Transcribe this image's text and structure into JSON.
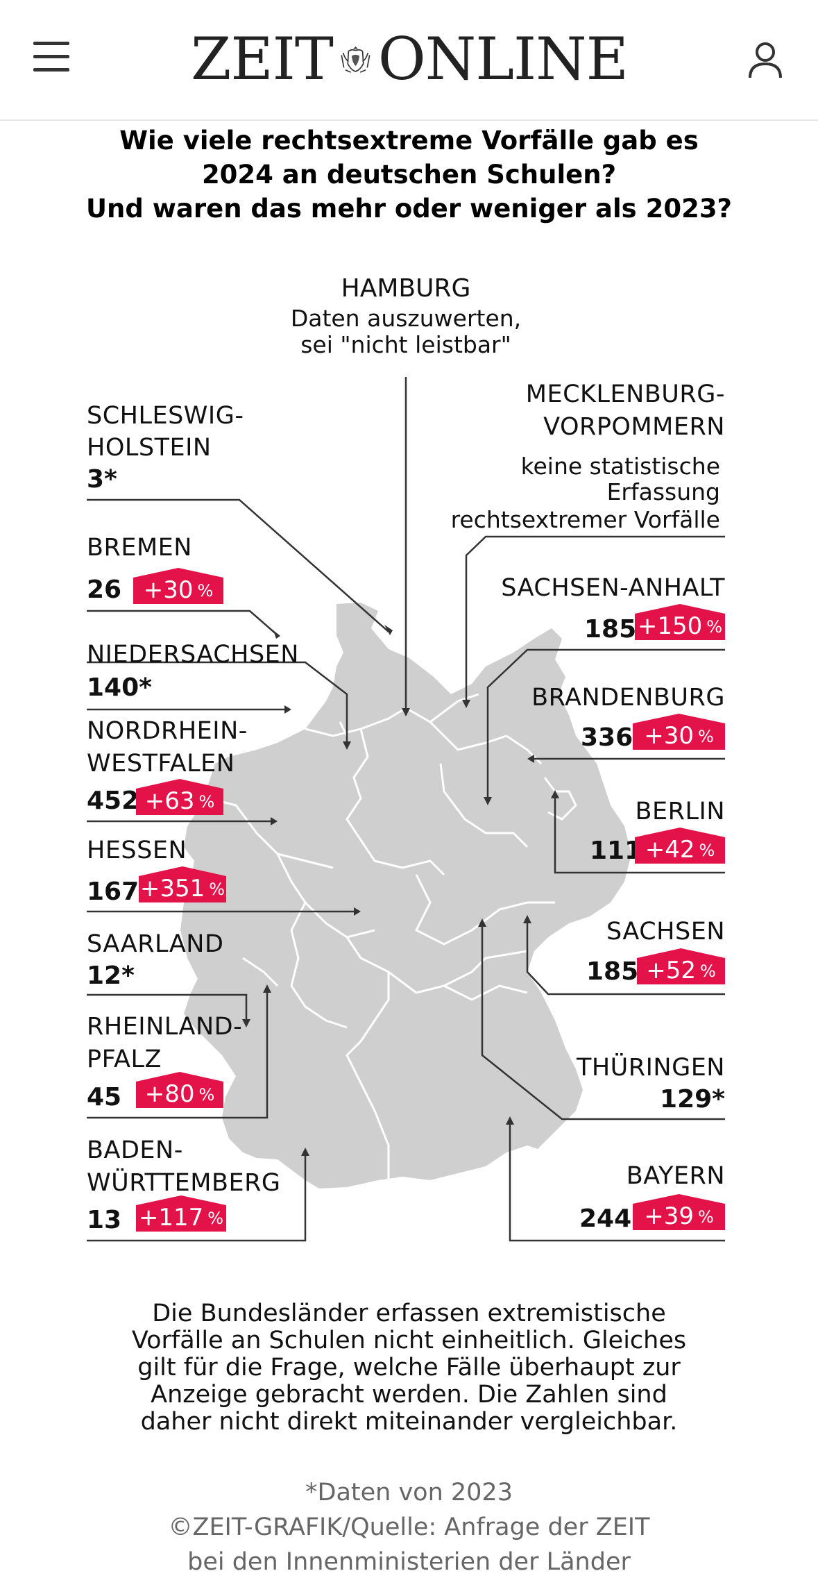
{
  "header": {
    "logo_left": "ZEIT",
    "logo_right": "ONLINE"
  },
  "title": {
    "line1": "Wie viele rechtsextreme Vorfälle gab es",
    "line2": "2024 an deutschen Schulen?",
    "line3": "Und waren das mehr oder weniger als 2023?"
  },
  "states": {
    "hamburg": {
      "name": "HAMBURG",
      "note1": "Daten auszuwerten,",
      "note2": "sei \"nicht leistbar\""
    },
    "mv": {
      "name1": "MECKLENBURG-",
      "name2": "VORPOMMERN",
      "note1": "keine statistische",
      "note2": "Erfassung",
      "note3": "rechtsextremer Vorfälle"
    },
    "sh": {
      "name1": "SCHLESWIG-",
      "name2": "HOLSTEIN",
      "value": "3*"
    },
    "bremen": {
      "name": "BREMEN",
      "value": "26",
      "change": "+30"
    },
    "niedersachsen": {
      "name": "NIEDERSACHSEN",
      "value": "140*"
    },
    "nrw": {
      "name1": "NORDRHEIN-",
      "name2": "WESTFALEN",
      "value": "452",
      "change": "+63"
    },
    "hessen": {
      "name": "HESSEN",
      "value": "167",
      "change": "+351"
    },
    "saarland": {
      "name": "SAARLAND",
      "value": "12*"
    },
    "rlp": {
      "name1": "RHEINLAND-",
      "name2": "PFALZ",
      "value": "45",
      "change": "+80"
    },
    "bw": {
      "name1": "BADEN-",
      "name2": "WÜRTTEMBERG",
      "value": "13",
      "change": "+117"
    },
    "sachsen_anhalt": {
      "name": "SACHSEN-ANHALT",
      "value": "185",
      "change": "+150"
    },
    "brandenburg": {
      "name": "BRANDENBURG",
      "value": "336",
      "change": "+30"
    },
    "berlin": {
      "name": "BERLIN",
      "value": "111",
      "change": "+42"
    },
    "sachsen": {
      "name": "SACHSEN",
      "value": "185",
      "change": "+52"
    },
    "thueringen": {
      "name": "THÜRINGEN",
      "value": "129*"
    },
    "bayern": {
      "name": "BAYERN",
      "value": "244",
      "change": "+39"
    }
  },
  "percent_symbol": "%",
  "footer": {
    "line1": "Die Bundesländer erfassen extremistische",
    "line2": "Vorfälle an Schulen nicht einheitlich. Gleiches",
    "line3": "gilt für die Frage, welche Fälle überhaupt zur",
    "line4": "Anzeige gebracht werden. Die Zahlen sind",
    "line5": "daher nicht direkt miteinander vergleichbar."
  },
  "source": {
    "asterisk_note": "*Daten von 2023",
    "line1": "©ZEIT-GRAFIK/Quelle: Anfrage der ZEIT",
    "line2": "bei den Innenministerien der Länder"
  },
  "colors": {
    "accent": "#e3134a",
    "map_fill": "#cfcfcf",
    "line": "#333333"
  }
}
